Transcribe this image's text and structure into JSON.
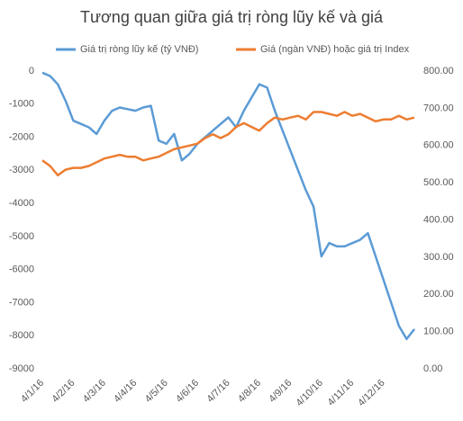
{
  "chart_data": {
    "type": "line",
    "title": "Tương quan giữa giá trị ròng lũy kế và giá",
    "categories": [
      "4/1/16",
      null,
      null,
      null,
      "4/2/16",
      null,
      null,
      null,
      "4/3/16",
      null,
      null,
      null,
      "4/4/16",
      null,
      null,
      null,
      "4/5/16",
      null,
      null,
      null,
      "4/6/16",
      null,
      null,
      null,
      "4/7/16",
      null,
      null,
      null,
      "4/8/16",
      null,
      null,
      null,
      "4/9/16",
      null,
      null,
      null,
      "4/10/16",
      null,
      null,
      null,
      "4/11/16",
      null,
      null,
      null,
      "4/12/16",
      null,
      null,
      null,
      null
    ],
    "series": [
      {
        "name": "Giá trị ròng lũy kế (tỷ VNĐ)",
        "color": "#5b9bd5",
        "values": [
          -50,
          -150,
          -400,
          -900,
          -1500,
          -1600,
          -1700,
          -1900,
          -1500,
          -1200,
          -1100,
          -1150,
          -1200,
          -1100,
          -1050,
          -2100,
          -2200,
          -1900,
          -2700,
          -2500,
          -2200,
          -2000,
          -1800,
          -1600,
          -1400,
          -1700,
          -1200,
          -800,
          -400,
          -500,
          -1200,
          -1800,
          -2400,
          -3000,
          -3600,
          -4100,
          -5600,
          -5200,
          -5300,
          -5300,
          -5200,
          -5100,
          -4900,
          -5600,
          -6300,
          -7000,
          -7700,
          -8100,
          -7800
        ]
      },
      {
        "name": "Giá (ngàn VNĐ) hoặc giá trị Index",
        "color": "#ed7d31",
        "axis": "y2",
        "values": [
          560,
          545,
          520,
          535,
          540,
          540,
          545,
          555,
          565,
          570,
          575,
          570,
          570,
          560,
          565,
          570,
          580,
          590,
          595,
          600,
          605,
          620,
          630,
          620,
          630,
          650,
          660,
          650,
          640,
          660,
          675,
          670,
          675,
          680,
          670,
          690,
          690,
          685,
          680,
          690,
          680,
          685,
          675,
          665,
          670,
          670,
          680,
          670,
          675
        ]
      }
    ],
    "ylim": [
      -9000,
      0
    ],
    "yticks": [
      -9000,
      -8000,
      -7000,
      -6000,
      -5000,
      -4000,
      -3000,
      -2000,
      -1000,
      0
    ],
    "y2lim": [
      0,
      800
    ],
    "y2ticks": [
      {
        "value": 0,
        "label": "0.00"
      },
      {
        "value": 100,
        "label": "100.00"
      },
      {
        "value": 200,
        "label": "200.00"
      },
      {
        "value": 300,
        "label": "300.00"
      },
      {
        "value": 400,
        "label": "400.00"
      },
      {
        "value": 500,
        "label": "500.00"
      },
      {
        "value": 600,
        "label": "600.00"
      },
      {
        "value": 700,
        "label": "700.00"
      },
      {
        "value": 800,
        "label": "800.00"
      }
    ],
    "legend": "top"
  }
}
